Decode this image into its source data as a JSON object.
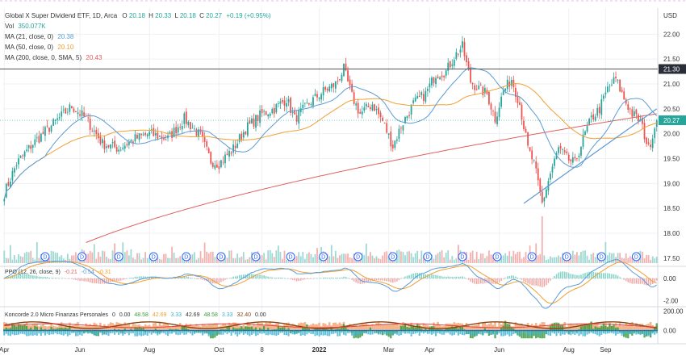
{
  "colors": {
    "up": "#26a69a",
    "down": "#ef5350",
    "ma21": "#5b9bd5",
    "ma50": "#f0a030",
    "ma200": "#e06060",
    "grid": "#eef0f4",
    "axis_text": "#333333",
    "line_level": "#555555",
    "trend": "#5b9bd5",
    "price_label_bg": "#ffffff",
    "level_label_bg": "#2a2e39",
    "ppo_line": "#5b9bd5",
    "ppo_signal": "#f0a030",
    "koncorde_green": "#3c9a3c",
    "koncorde_brown": "#8b4513",
    "koncorde_orange": "#f4b48a",
    "koncorde_blue": "#1f78b4",
    "koncorde_cyan": "#3ab0d0",
    "koncorde_red": "#e04040"
  },
  "header": {
    "title": "Global X Super Dividend ETF, 1D, Arca",
    "o_label": "O",
    "o_value": "20.18",
    "h_label": "H",
    "h_value": "20.33",
    "l_label": "L",
    "l_value": "20.18",
    "c_label": "C",
    "c_value": "20.27",
    "change": "+0.19 (+0.95%)",
    "vol_label": "Vol",
    "vol_value": "350.077K",
    "ma21_label": "MA (21, close, 0)",
    "ma21_value": "20.38",
    "ma50_label": "MA (50, close, 0)",
    "ma50_value": "20.10",
    "ma200_label": "MA (200, close, 0, SMA, 5)",
    "ma200_value": "20.43",
    "currency": "USD"
  },
  "chart_data": [
    {
      "type": "candlestick",
      "title": "Global X Super Dividend ETF, 1D, Arca",
      "ylabel": "USD",
      "ylim": [
        17.4,
        22.2
      ],
      "y_ticks": [
        "22.00",
        "21.50",
        "21.00",
        "20.50",
        "20.00",
        "19.50",
        "19.00",
        "18.50",
        "18.00",
        "17.50"
      ],
      "x_ticks": [
        "Apr",
        "Jun",
        "Aug",
        "Oct",
        "8",
        "2022",
        "Mar",
        "Apr",
        "Jun",
        "Aug",
        "Sep"
      ],
      "x_tick_index": [
        0,
        37,
        71,
        105,
        126,
        154,
        188,
        208,
        242,
        276,
        294
      ],
      "level_line": 21.3,
      "level_label": "21.30",
      "last_price_label": "20.27",
      "trendline": {
        "from_index": 254,
        "from_value": 18.6,
        "to_index": 319,
        "to_value": 20.5
      },
      "close_anchors": [
        [
          0,
          18.8
        ],
        [
          6,
          19.4
        ],
        [
          14,
          19.8
        ],
        [
          24,
          20.2
        ],
        [
          33,
          20.55
        ],
        [
          40,
          20.3
        ],
        [
          48,
          19.8
        ],
        [
          56,
          19.7
        ],
        [
          64,
          19.9
        ],
        [
          71,
          20.0
        ],
        [
          80,
          19.9
        ],
        [
          88,
          20.3
        ],
        [
          96,
          19.95
        ],
        [
          101,
          19.45
        ],
        [
          105,
          19.4
        ],
        [
          112,
          19.7
        ],
        [
          118,
          20.1
        ],
        [
          126,
          20.4
        ],
        [
          132,
          20.5
        ],
        [
          138,
          20.7
        ],
        [
          142,
          20.3
        ],
        [
          150,
          20.65
        ],
        [
          156,
          20.85
        ],
        [
          162,
          21.0
        ],
        [
          166,
          21.3
        ],
        [
          170,
          20.75
        ],
        [
          174,
          20.4
        ],
        [
          180,
          20.6
        ],
        [
          185,
          20.25
        ],
        [
          190,
          19.75
        ],
        [
          194,
          20.15
        ],
        [
          200,
          20.6
        ],
        [
          206,
          20.8
        ],
        [
          211,
          21.2
        ],
        [
          216,
          21.25
        ],
        [
          220,
          21.55
        ],
        [
          224,
          21.75
        ],
        [
          228,
          21.05
        ],
        [
          232,
          20.9
        ],
        [
          236,
          20.8
        ],
        [
          240,
          20.3
        ],
        [
          244,
          20.85
        ],
        [
          248,
          21.1
        ],
        [
          252,
          20.6
        ],
        [
          256,
          19.7
        ],
        [
          259,
          19.4
        ],
        [
          263,
          18.6
        ],
        [
          267,
          19.2
        ],
        [
          271,
          19.7
        ],
        [
          275,
          19.5
        ],
        [
          279,
          19.4
        ],
        [
          283,
          19.9
        ],
        [
          287,
          20.3
        ],
        [
          291,
          20.5
        ],
        [
          295,
          20.9
        ],
        [
          299,
          21.1
        ],
        [
          303,
          20.7
        ],
        [
          307,
          20.4
        ],
        [
          311,
          20.25
        ],
        [
          315,
          19.7
        ],
        [
          319,
          20.27
        ]
      ],
      "series": [
        {
          "name": "MA (21, close, 0)",
          "last": 20.38
        },
        {
          "name": "MA (50, close, 0)",
          "last": 20.1
        },
        {
          "name": "MA (200, close, 0, SMA, 5)",
          "last": 20.43
        }
      ],
      "dividend_marker": "D",
      "dividend_indices": [
        20,
        38,
        56,
        73,
        89,
        106,
        123,
        140,
        156,
        173,
        190,
        207,
        224,
        241,
        258,
        275,
        292,
        309
      ]
    },
    {
      "type": "line",
      "title": "PPO (12, 26, close, 9)",
      "values_text": [
        "-0.21",
        "-0.54",
        "-0.31"
      ],
      "y_ticks": [
        "0.00",
        "-2.00"
      ],
      "ylim": [
        -2.4,
        0.8
      ]
    },
    {
      "type": "area",
      "title": "Koncorde 2.0 Micro Finanzas Personales",
      "values_text": [
        "0",
        "0.00",
        "48.58",
        "42.69",
        "3.33",
        "42.69",
        "48.58",
        "3.33",
        "32.40",
        "0.00"
      ],
      "y_ticks": [
        "200.00",
        "0.00"
      ],
      "ylim": [
        -120,
        230
      ]
    }
  ],
  "dividend_label": "D"
}
